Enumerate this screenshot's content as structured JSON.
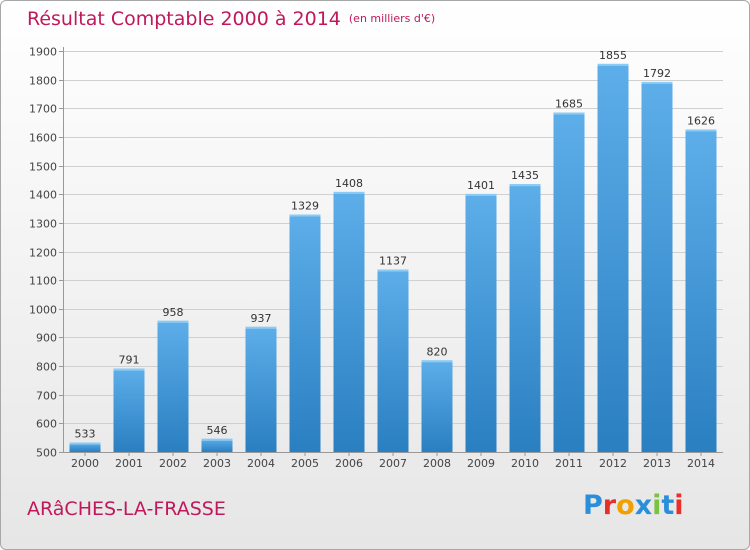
{
  "page": {
    "title": "Résultat Comptable 2000 à 2014",
    "subtitle": "(en milliers d'€)",
    "commune": "ARâCHES-LA-FRASSE",
    "logo_text": "Proxiti"
  },
  "colors": {
    "title": "#c0185a",
    "bar_top": "#5daee9",
    "bar_bottom": "#2a7fc1",
    "grid": "#d0d0d0",
    "logo": [
      "#2a8fd8",
      "#e8302a",
      "#f0a000",
      "#2a8fd8",
      "#7cc242",
      "#2a8fd8",
      "#e8302a"
    ]
  },
  "chart_data": {
    "type": "bar",
    "title": "Résultat Comptable 2000 à 2014",
    "categories": [
      "2000",
      "2001",
      "2002",
      "2003",
      "2004",
      "2005",
      "2006",
      "2007",
      "2008",
      "2009",
      "2010",
      "2011",
      "2012",
      "2013",
      "2014"
    ],
    "values": [
      533,
      791,
      958,
      546,
      937,
      1329,
      1408,
      1137,
      820,
      1401,
      1435,
      1685,
      1855,
      1792,
      1626
    ],
    "yticks": [
      500,
      600,
      700,
      800,
      900,
      1000,
      1100,
      1200,
      1300,
      1400,
      1500,
      1600,
      1700,
      1800,
      1900
    ],
    "ylim": [
      500,
      1900
    ],
    "grid": true,
    "xlabel": "",
    "ylabel": ""
  }
}
